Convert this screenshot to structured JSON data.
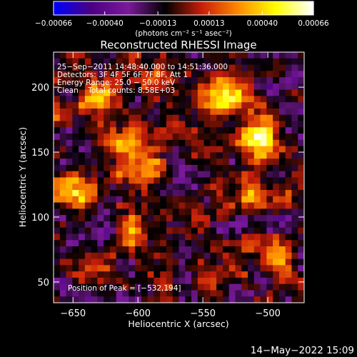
{
  "chart_data": {
    "type": "heatmap",
    "title": "Reconstructed RHESSI Image",
    "xlabel": "Heliocentric X (arcsec)",
    "ylabel": "Heliocentric Y (arcsec)",
    "xlim": [
      -665,
      -472
    ],
    "ylim": [
      34,
      227
    ],
    "x_ticks": [
      -650,
      -600,
      -550,
      -500
    ],
    "y_ticks": [
      50,
      100,
      150,
      200
    ],
    "colorbar": {
      "min": -0.00066,
      "max": 0.00066,
      "ticks": [
        -0.00066,
        -0.0004,
        -0.00013,
        0.00013,
        0.0004,
        0.00066
      ],
      "tick_labels": [
        "−0.00066",
        "−0.00040",
        "−0.00013",
        "0.00013",
        "0.00040",
        "0.00066"
      ],
      "units_label": "(photons cm⁻² s⁻¹ asec⁻²)",
      "colormap": [
        "#0000ff",
        "#4b0082",
        "#7a1a9a",
        "#000000",
        "#c81e0a",
        "#ff8c00",
        "#ffff00",
        "#ffffff"
      ]
    },
    "annotations": [
      "25−Sep−2011 14:48:40.000 to 14:51:36.000",
      "Detectors: 3F 4F 5F 6F 7F 8F, Att 1",
      "Energy Range: 25.0 − 50.0 keV",
      "Clean    Total counts: 8.58E+03"
    ],
    "peak_label": "Position of Peak = [−532,194]",
    "peak_position": [
      -532,
      194
    ],
    "sources": [
      {
        "x": -648,
        "y": 120,
        "intensity": 0.00045
      },
      {
        "x": -633,
        "y": 190,
        "intensity": 0.0004
      },
      {
        "x": -612,
        "y": 160,
        "intensity": 0.00038
      },
      {
        "x": -594,
        "y": 140,
        "intensity": 0.0005
      },
      {
        "x": -588,
        "y": 205,
        "intensity": 0.0003
      },
      {
        "x": -600,
        "y": 90,
        "intensity": 0.00035
      },
      {
        "x": -532,
        "y": 194,
        "intensity": 0.00066
      },
      {
        "x": -508,
        "y": 160,
        "intensity": 0.00055
      },
      {
        "x": -510,
        "y": 118,
        "intensity": 0.00038
      },
      {
        "x": -495,
        "y": 70,
        "intensity": 0.00035
      },
      {
        "x": -545,
        "y": 58,
        "intensity": 0.0003
      },
      {
        "x": -640,
        "y": 60,
        "intensity": 0.0002
      }
    ],
    "footer_timestamp": "14−May−2022 15:09"
  }
}
